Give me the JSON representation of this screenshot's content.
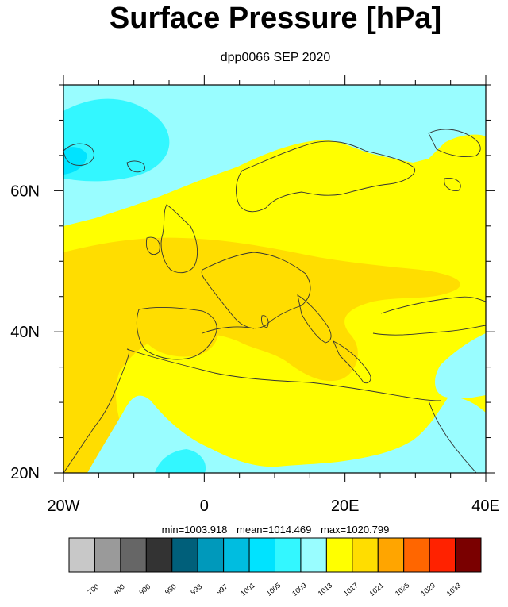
{
  "title": "Surface Pressure [hPa]",
  "subtitle": "dpp0066 SEP 2020",
  "map": {
    "lon_range": [
      -20,
      40
    ],
    "lat_range": [
      20,
      75
    ],
    "x_ticks": [
      {
        "value": -20,
        "label": "20W"
      },
      {
        "value": 0,
        "label": "0"
      },
      {
        "value": 20,
        "label": "20E"
      },
      {
        "value": 40,
        "label": "40E"
      }
    ],
    "y_ticks": [
      {
        "value": 20,
        "label": "20N"
      },
      {
        "value": 40,
        "label": "40N"
      },
      {
        "value": 60,
        "label": "60N"
      }
    ],
    "regions": {
      "north_atlantic": "1009–1013",
      "greenland_low_core": "1005–1009",
      "central_europe_band": "1013–1017",
      "west_europe_ridge": "1017–1021",
      "sahara_east_med": "1009–1013"
    }
  },
  "stats": {
    "min": "min=1003.918",
    "mean": "mean=1014.469",
    "max": "max=1020.799"
  },
  "colorbar": {
    "colors": [
      "#c8c8c8",
      "#9a9a9a",
      "#666666",
      "#333333",
      "#005f7a",
      "#0099bb",
      "#00bde0",
      "#00e3ff",
      "#33f7ff",
      "#99fdff",
      "#ffff00",
      "#ffdd00",
      "#ffa500",
      "#ff6600",
      "#ff2200",
      "#7a0000"
    ],
    "labels": [
      "700",
      "800",
      "900",
      "950",
      "993",
      "997",
      "1001",
      "1005",
      "1009",
      "1013",
      "1017",
      "1021",
      "1025",
      "1029",
      "1033"
    ]
  },
  "palette": {
    "cyan_light": "#99fdff",
    "cyan_mid": "#33f7ff",
    "yellow": "#ffff00",
    "gold": "#ffdd00",
    "coast": "#333333"
  }
}
